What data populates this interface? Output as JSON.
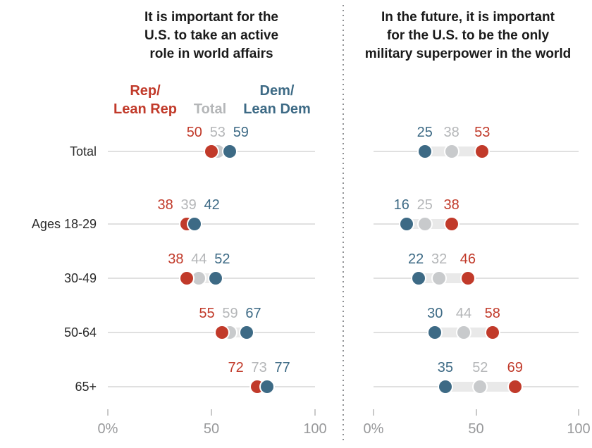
{
  "colors": {
    "rep": "#c13a2a",
    "dem": "#3d6a85",
    "total_text": "#b4b6b8",
    "total_dot": "#c8cacc",
    "row_line": "#e0e0e0",
    "band": "#e9e9e9",
    "axis_text": "#98999b",
    "title_text": "#1a1a1a"
  },
  "chart_data": {
    "type": "scatter",
    "subtype": "dot-plot-two-panels",
    "categories": [
      "Total",
      "Ages 18-29",
      "30-49",
      "50-64",
      "65+"
    ],
    "legend": [
      {
        "key": "rep",
        "name": "Rep/\nLean Rep"
      },
      {
        "key": "total",
        "name": "Total"
      },
      {
        "key": "dem",
        "name": "Dem/\nLean Dem"
      }
    ],
    "xlim": [
      0,
      100
    ],
    "x_ticks": [
      {
        "value": 0,
        "label": "0%"
      },
      {
        "value": 50,
        "label": "50"
      },
      {
        "value": 100,
        "label": "100"
      }
    ],
    "panels": [
      {
        "title": "It is important for the\nU.S. to take an active\nrole in world affairs",
        "series": [
          {
            "key": "rep",
            "name": "Rep/Lean Rep",
            "values": [
              50,
              38,
              38,
              55,
              72
            ]
          },
          {
            "key": "total",
            "name": "Total",
            "values": [
              53,
              39,
              44,
              59,
              73
            ]
          },
          {
            "key": "dem",
            "name": "Dem/Lean Dem",
            "values": [
              59,
              42,
              52,
              67,
              77
            ]
          }
        ]
      },
      {
        "title": "In the future, it is important\nfor the U.S. to be the only\nmilitary superpower in the world",
        "series": [
          {
            "key": "rep",
            "name": "Rep/Lean Rep",
            "values": [
              53,
              38,
              46,
              58,
              69
            ]
          },
          {
            "key": "total",
            "name": "Total",
            "values": [
              38,
              25,
              32,
              44,
              52
            ]
          },
          {
            "key": "dem",
            "name": "Dem/Lean Dem",
            "values": [
              25,
              16,
              22,
              30,
              35
            ]
          }
        ]
      }
    ]
  }
}
